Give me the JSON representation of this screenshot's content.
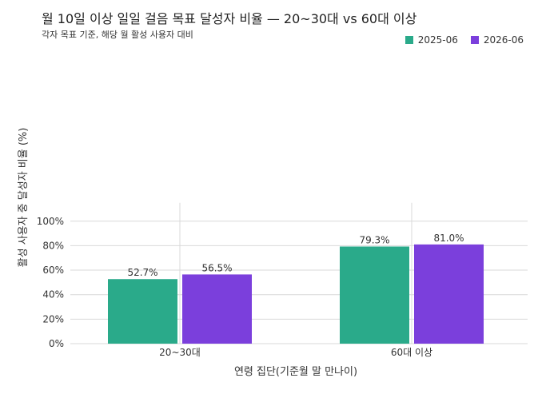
{
  "chart_data": {
    "type": "bar",
    "title": "월 10일 이상 일일 걸음 목표 달성자 비율 — 20~30대 vs 60대 이상",
    "subtitle": "각자 목표 기준, 해당 월 활성 사용자 대비",
    "xlabel": "연령 집단(기준월 말 만나이)",
    "ylabel": "활성 사용자 중 달성자 비율 (%)",
    "categories": [
      "20~30대",
      "60대 이상"
    ],
    "series": [
      {
        "name": "2025-06",
        "values": [
          52.7,
          79.3
        ],
        "labels": [
          "52.7%",
          "79.3%"
        ],
        "color": "#2aaa8a"
      },
      {
        "name": "2026-06",
        "values": [
          56.5,
          81.0
        ],
        "labels": [
          "56.5%",
          "81.0%"
        ],
        "color": "#7b3fdc"
      }
    ],
    "ylim": [
      0,
      115
    ],
    "yticks": [
      {
        "value": 0,
        "label": "0%"
      },
      {
        "value": 20,
        "label": "20%"
      },
      {
        "value": 40,
        "label": "40%"
      },
      {
        "value": 60,
        "label": "60%"
      },
      {
        "value": 80,
        "label": "80%"
      },
      {
        "value": 100,
        "label": "100%"
      }
    ],
    "grid": true,
    "legend_position": "top-right"
  }
}
